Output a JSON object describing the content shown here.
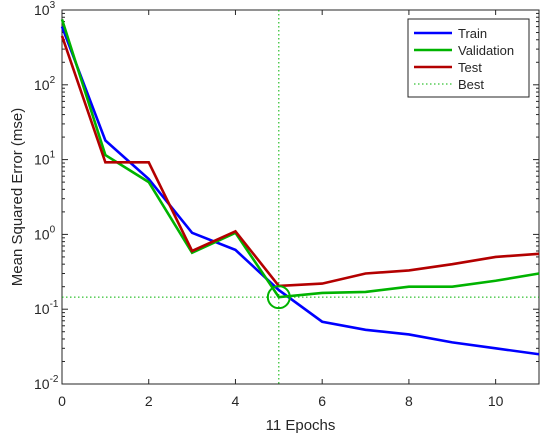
{
  "chart_data": {
    "type": "line",
    "y_scale": "log",
    "xlabel": "11 Epochs",
    "ylabel": "Mean Squared Error  (mse)",
    "xlim": [
      0,
      11
    ],
    "ylim": [
      0.01,
      1000
    ],
    "x_ticks": [
      "0",
      "2",
      "4",
      "6",
      "8",
      "10"
    ],
    "x_tick_values": [
      0,
      2,
      4,
      6,
      8,
      10
    ],
    "y_ticks": [
      {
        "base": "10",
        "exp": "-2",
        "value": 0.01
      },
      {
        "base": "10",
        "exp": "-1",
        "value": 0.1
      },
      {
        "base": "10",
        "exp": "0",
        "value": 1
      },
      {
        "base": "10",
        "exp": "1",
        "value": 10
      },
      {
        "base": "10",
        "exp": "2",
        "value": 100
      },
      {
        "base": "10",
        "exp": "3",
        "value": 1000
      }
    ],
    "grid": false,
    "legend_position": "top-right",
    "x": [
      0,
      1,
      2,
      3,
      4,
      5,
      6,
      7,
      8,
      9,
      10,
      11
    ],
    "series": [
      {
        "name": "Train",
        "color": "#0000ff",
        "values": [
          600,
          18,
          5.5,
          1.05,
          0.62,
          0.18,
          0.068,
          0.053,
          0.046,
          0.036,
          0.03,
          0.025
        ]
      },
      {
        "name": "Validation",
        "color": "#00b300",
        "values": [
          750,
          11.5,
          5,
          0.57,
          1.05,
          0.145,
          0.165,
          0.17,
          0.2,
          0.2,
          0.24,
          0.3
        ]
      },
      {
        "name": "Test",
        "color": "#b30000",
        "values": [
          450,
          9.2,
          9.2,
          0.6,
          1.1,
          0.205,
          0.22,
          0.3,
          0.33,
          0.4,
          0.5,
          0.55
        ]
      }
    ],
    "best": {
      "name": "Best",
      "color": "#00b300",
      "epoch": 5,
      "value": 0.145
    }
  }
}
